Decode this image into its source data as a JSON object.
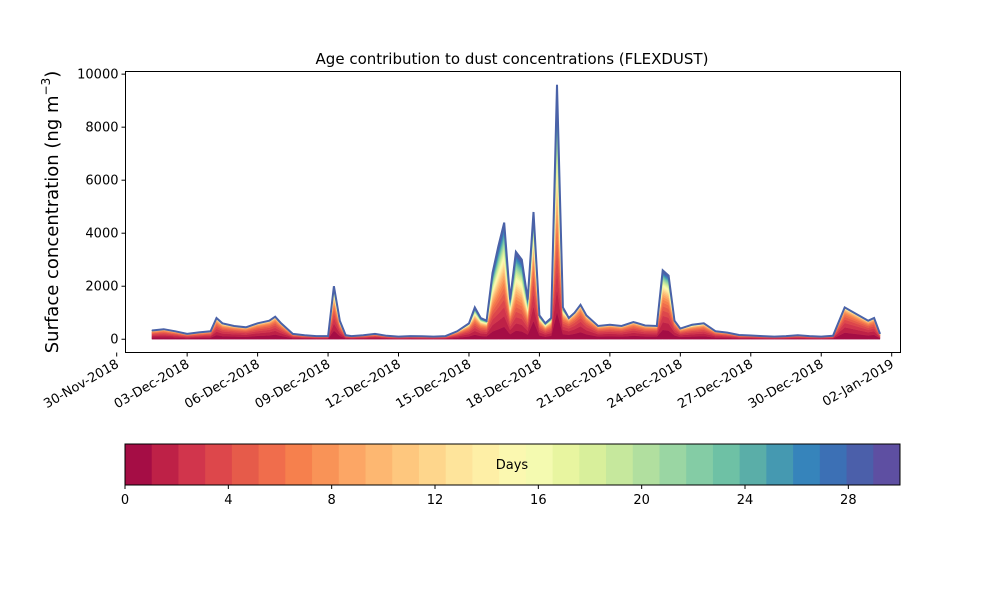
{
  "chart_data": {
    "type": "area",
    "title": "Age contribution to dust concentrations (FLEXDUST)",
    "ylabel_main": "Surface concentration (ng m",
    "ylabel_exp": "−3",
    "ylabel_close": ")",
    "xlabel": "",
    "ylim": [
      -500,
      10100
    ],
    "xlim": [
      "2018-11-30T09:00",
      "2019-01-02T09:00"
    ],
    "yticks": [
      0,
      2000,
      4000,
      6000,
      8000,
      10000
    ],
    "ytick_labels": [
      "0",
      "2000",
      "4000",
      "6000",
      "8000",
      "10000"
    ],
    "xticks": [
      "2018-11-30",
      "2018-12-03",
      "2018-12-06",
      "2018-12-09",
      "2018-12-12",
      "2018-12-15",
      "2018-12-18",
      "2018-12-21",
      "2018-12-24",
      "2018-12-27",
      "2018-12-30",
      "2019-01-02"
    ],
    "xtick_labels": [
      "30-Nov-2018",
      "03-Dec-2018",
      "06-Dec-2018",
      "09-Dec-2018",
      "12-Dec-2018",
      "15-Dec-2018",
      "18-Dec-2018",
      "21-Dec-2018",
      "24-Dec-2018",
      "27-Dec-2018",
      "30-Dec-2018",
      "02-Jan-2019"
    ],
    "x": [
      "2018-12-01T12:00",
      "2018-12-02T00:00",
      "2018-12-02T12:00",
      "2018-12-03T00:00",
      "2018-12-03T12:00",
      "2018-12-04T00:00",
      "2018-12-04T06:00",
      "2018-12-04T12:00",
      "2018-12-05T00:00",
      "2018-12-05T12:00",
      "2018-12-06T00:00",
      "2018-12-06T12:00",
      "2018-12-06T18:00",
      "2018-12-07T00:00",
      "2018-12-07T12:00",
      "2018-12-08T00:00",
      "2018-12-08T12:00",
      "2018-12-09T00:00",
      "2018-12-09T06:00",
      "2018-12-09T12:00",
      "2018-12-09T18:00",
      "2018-12-10T00:00",
      "2018-12-10T12:00",
      "2018-12-11T00:00",
      "2018-12-11T12:00",
      "2018-12-12T00:00",
      "2018-12-12T12:00",
      "2018-12-13T00:00",
      "2018-12-13T12:00",
      "2018-12-14T00:00",
      "2018-12-14T12:00",
      "2018-12-15T00:00",
      "2018-12-15T06:00",
      "2018-12-15T12:00",
      "2018-12-15T18:00",
      "2018-12-16T00:00",
      "2018-12-16T06:00",
      "2018-12-16T12:00",
      "2018-12-16T18:00",
      "2018-12-17T00:00",
      "2018-12-17T06:00",
      "2018-12-17T12:00",
      "2018-12-17T18:00",
      "2018-12-18T00:00",
      "2018-12-18T06:00",
      "2018-12-18T12:00",
      "2018-12-18T18:00",
      "2018-12-19T00:00",
      "2018-12-19T06:00",
      "2018-12-19T12:00",
      "2018-12-19T18:00",
      "2018-12-20T00:00",
      "2018-12-20T12:00",
      "2018-12-21T00:00",
      "2018-12-21T12:00",
      "2018-12-22T00:00",
      "2018-12-22T12:00",
      "2018-12-23T00:00",
      "2018-12-23T06:00",
      "2018-12-23T12:00",
      "2018-12-23T18:00",
      "2018-12-24T00:00",
      "2018-12-24T12:00",
      "2018-12-25T00:00",
      "2018-12-25T12:00",
      "2018-12-26T00:00",
      "2018-12-26T12:00",
      "2018-12-27T00:00",
      "2018-12-27T12:00",
      "2018-12-28T00:00",
      "2018-12-28T12:00",
      "2018-12-29T00:00",
      "2018-12-29T12:00",
      "2018-12-30T00:00",
      "2018-12-30T12:00",
      "2018-12-31T00:00",
      "2018-12-31T12:00",
      "2019-01-01T00:00",
      "2019-01-01T06:00",
      "2019-01-01T12:00"
    ],
    "total": [
      330,
      380,
      300,
      200,
      260,
      300,
      800,
      600,
      500,
      450,
      600,
      700,
      850,
      600,
      200,
      150,
      120,
      120,
      2000,
      700,
      150,
      120,
      150,
      200,
      130,
      100,
      120,
      110,
      100,
      120,
      300,
      600,
      1200,
      800,
      700,
      2500,
      3500,
      4400,
      1500,
      3300,
      3000,
      1500,
      4800,
      900,
      600,
      800,
      9600,
      1200,
      800,
      1000,
      1300,
      900,
      500,
      550,
      500,
      650,
      520,
      500,
      2600,
      2400,
      700,
      400,
      550,
      600,
      300,
      250,
      160,
      140,
      120,
      100,
      120,
      150,
      120,
      100,
      130,
      1200,
      950,
      700,
      800,
      200
    ],
    "fresh_share": [
      0.05,
      0.05,
      0.05,
      0.05,
      0.05,
      0.05,
      0.1,
      0.1,
      0.05,
      0.05,
      0.05,
      0.05,
      0.05,
      0.05,
      0.05,
      0.05,
      0.05,
      0.05,
      0.3,
      0.2,
      0.05,
      0.05,
      0.05,
      0.05,
      0.05,
      0.05,
      0.05,
      0.05,
      0.05,
      0.05,
      0.1,
      0.2,
      0.4,
      0.35,
      0.3,
      0.55,
      0.6,
      0.6,
      0.5,
      0.65,
      0.65,
      0.55,
      0.4,
      0.3,
      0.3,
      0.3,
      0.6,
      0.3,
      0.05,
      0.05,
      0.05,
      0.05,
      0.05,
      0.05,
      0.05,
      0.05,
      0.05,
      0.05,
      0.45,
      0.45,
      0.05,
      0.05,
      0.15,
      0.1,
      0.05,
      0.05,
      0.05,
      0.05,
      0.05,
      0.05,
      0.05,
      0.05,
      0.05,
      0.05,
      0.05,
      0.05,
      0.05,
      0.05,
      0.05,
      0.05
    ],
    "colorbar": {
      "label": "Days",
      "min": 0,
      "max": 30,
      "ticks": [
        0,
        4,
        8,
        12,
        16,
        20,
        24,
        28
      ],
      "tick_labels": [
        "0",
        "4",
        "8",
        "12",
        "16",
        "20",
        "24",
        "28"
      ],
      "colors": [
        "#a50d45",
        "#be2147",
        "#d1354c",
        "#dd474b",
        "#e65b4a",
        "#f06d4c",
        "#f6804d",
        "#f99357",
        "#fca665",
        "#fdb771",
        "#fec77e",
        "#fed68c",
        "#fee49b",
        "#feefa6",
        "#fbf8b0",
        "#f4fab0",
        "#e8f5a0",
        "#d8ef9b",
        "#c6e89d",
        "#b1df9f",
        "#9ad6a3",
        "#84cca5",
        "#6ec1a5",
        "#5aaea8",
        "#4599b1",
        "#3684bb",
        "#3c70b5",
        "#4b5faa",
        "#5e4fa2"
      ]
    },
    "outline_color": "#4a62a8",
    "grid": false,
    "legend": "colorbar-bottom"
  }
}
